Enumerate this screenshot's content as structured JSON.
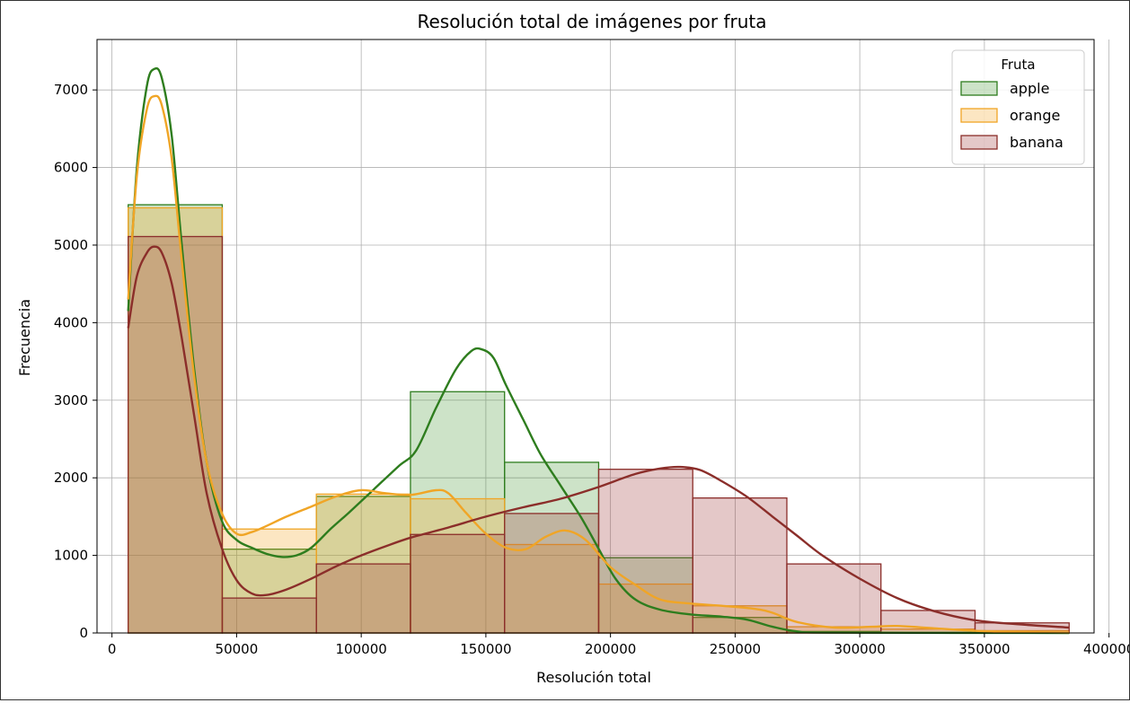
{
  "chart_data": {
    "type": "histogram-kde",
    "title": "Resolución total de imágenes por fruta",
    "xlabel": "Resolución total",
    "ylabel": "Frecuencia",
    "xlim": [
      -6000,
      394000
    ],
    "ylim": [
      0,
      7650
    ],
    "xticks": [
      0,
      50000,
      100000,
      150000,
      200000,
      250000,
      300000,
      350000,
      400000
    ],
    "yticks": [
      0,
      1000,
      2000,
      3000,
      4000,
      5000,
      6000,
      7000
    ],
    "grid": true,
    "legend": {
      "title": "Fruta",
      "position": "top-right"
    },
    "bin_edges": [
      6500,
      44250,
      82000,
      119750,
      157500,
      195250,
      233000,
      270750,
      308500,
      346250,
      384000
    ],
    "series": [
      {
        "name": "apple",
        "fill": "#4c9a3a",
        "stroke": "#2e7d1e",
        "counts": [
          5520,
          1080,
          1760,
          3110,
          2200,
          970,
          200,
          20,
          5,
          2
        ],
        "kde": [
          [
            6500,
            4150
          ],
          [
            10000,
            6000
          ],
          [
            14000,
            7050
          ],
          [
            17000,
            7270
          ],
          [
            20000,
            7150
          ],
          [
            24000,
            6400
          ],
          [
            28000,
            5000
          ],
          [
            33000,
            3400
          ],
          [
            38000,
            2200
          ],
          [
            44000,
            1450
          ],
          [
            50000,
            1200
          ],
          [
            56000,
            1100
          ],
          [
            62000,
            1020
          ],
          [
            68000,
            980
          ],
          [
            74000,
            1000
          ],
          [
            80000,
            1100
          ],
          [
            88000,
            1350
          ],
          [
            95000,
            1550
          ],
          [
            105000,
            1850
          ],
          [
            115000,
            2150
          ],
          [
            122000,
            2350
          ],
          [
            130000,
            2900
          ],
          [
            138000,
            3400
          ],
          [
            144000,
            3630
          ],
          [
            148000,
            3660
          ],
          [
            153000,
            3550
          ],
          [
            158000,
            3200
          ],
          [
            165000,
            2750
          ],
          [
            172000,
            2300
          ],
          [
            180000,
            1900
          ],
          [
            188000,
            1500
          ],
          [
            195000,
            1100
          ],
          [
            202000,
            700
          ],
          [
            210000,
            430
          ],
          [
            220000,
            300
          ],
          [
            232000,
            240
          ],
          [
            245000,
            210
          ],
          [
            255000,
            170
          ],
          [
            265000,
            80
          ],
          [
            275000,
            20
          ],
          [
            290000,
            5
          ],
          [
            384000,
            0
          ]
        ]
      },
      {
        "name": "orange",
        "fill": "#f5a623",
        "stroke": "#f0a526",
        "counts": [
          5480,
          1340,
          1790,
          1730,
          1140,
          630,
          350,
          80,
          50,
          30
        ],
        "kde": [
          [
            6500,
            4300
          ],
          [
            10000,
            5900
          ],
          [
            14000,
            6750
          ],
          [
            17000,
            6920
          ],
          [
            20000,
            6800
          ],
          [
            24000,
            6100
          ],
          [
            28000,
            4800
          ],
          [
            33000,
            3300
          ],
          [
            38000,
            2200
          ],
          [
            44000,
            1550
          ],
          [
            50000,
            1280
          ],
          [
            56000,
            1300
          ],
          [
            62000,
            1380
          ],
          [
            70000,
            1500
          ],
          [
            80000,
            1630
          ],
          [
            90000,
            1760
          ],
          [
            100000,
            1840
          ],
          [
            110000,
            1800
          ],
          [
            120000,
            1780
          ],
          [
            130000,
            1840
          ],
          [
            135000,
            1800
          ],
          [
            142000,
            1550
          ],
          [
            150000,
            1280
          ],
          [
            158000,
            1100
          ],
          [
            166000,
            1080
          ],
          [
            174000,
            1240
          ],
          [
            182000,
            1320
          ],
          [
            190000,
            1200
          ],
          [
            200000,
            850
          ],
          [
            210000,
            620
          ],
          [
            220000,
            430
          ],
          [
            232000,
            380
          ],
          [
            245000,
            350
          ],
          [
            258000,
            310
          ],
          [
            265000,
            260
          ],
          [
            275000,
            140
          ],
          [
            290000,
            70
          ],
          [
            305000,
            80
          ],
          [
            315000,
            90
          ],
          [
            330000,
            60
          ],
          [
            345000,
            30
          ],
          [
            360000,
            15
          ],
          [
            384000,
            5
          ]
        ]
      },
      {
        "name": "banana",
        "fill": "#9e3a3a",
        "stroke": "#8b2e2a",
        "counts": [
          5110,
          450,
          890,
          1270,
          1540,
          2110,
          1740,
          890,
          290,
          130
        ],
        "kde": [
          [
            6500,
            3930
          ],
          [
            10000,
            4600
          ],
          [
            14000,
            4900
          ],
          [
            17000,
            4980
          ],
          [
            20000,
            4900
          ],
          [
            24000,
            4500
          ],
          [
            28000,
            3800
          ],
          [
            33000,
            2800
          ],
          [
            38000,
            1800
          ],
          [
            44000,
            1100
          ],
          [
            50000,
            680
          ],
          [
            56000,
            510
          ],
          [
            62000,
            490
          ],
          [
            70000,
            560
          ],
          [
            80000,
            700
          ],
          [
            90000,
            860
          ],
          [
            100000,
            1000
          ],
          [
            110000,
            1120
          ],
          [
            120000,
            1230
          ],
          [
            135000,
            1360
          ],
          [
            150000,
            1500
          ],
          [
            165000,
            1620
          ],
          [
            180000,
            1730
          ],
          [
            195000,
            1880
          ],
          [
            210000,
            2050
          ],
          [
            220000,
            2120
          ],
          [
            228000,
            2140
          ],
          [
            236000,
            2100
          ],
          [
            245000,
            1950
          ],
          [
            255000,
            1750
          ],
          [
            265000,
            1500
          ],
          [
            275000,
            1250
          ],
          [
            285000,
            1000
          ],
          [
            300000,
            700
          ],
          [
            315000,
            450
          ],
          [
            330000,
            280
          ],
          [
            345000,
            170
          ],
          [
            360000,
            120
          ],
          [
            384000,
            70
          ]
        ]
      }
    ]
  }
}
